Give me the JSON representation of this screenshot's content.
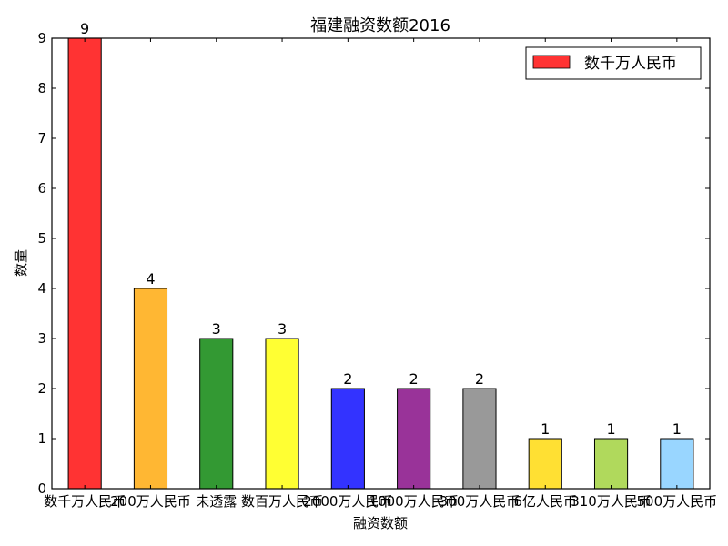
{
  "chart_data": {
    "type": "bar",
    "title": "福建融资数额2016",
    "xlabel": "融资数额",
    "ylabel": "数量",
    "categories": [
      "数千万人民币",
      "200万人民币",
      "未透露",
      "数百万人民币",
      "2000万人民币",
      "1000万人民币",
      "300万人民币",
      "6亿人民币",
      "310万人民币",
      "500万人民币"
    ],
    "values": [
      9,
      4,
      3,
      3,
      2,
      2,
      2,
      1,
      1,
      1
    ],
    "colors": [
      "#ff3333",
      "#ffb733",
      "#339933",
      "#ffff33",
      "#3333ff",
      "#993399",
      "#999999",
      "#ffe033",
      "#b0d95c",
      "#99d6ff"
    ],
    "ylim": [
      0,
      9
    ],
    "yticks": [
      0,
      1,
      2,
      3,
      4,
      5,
      6,
      7,
      8,
      9
    ],
    "grid": false,
    "legend": {
      "entries": [
        {
          "label": "数千万人民币",
          "color": "#ff3333"
        }
      ],
      "placement": "top-right"
    }
  }
}
